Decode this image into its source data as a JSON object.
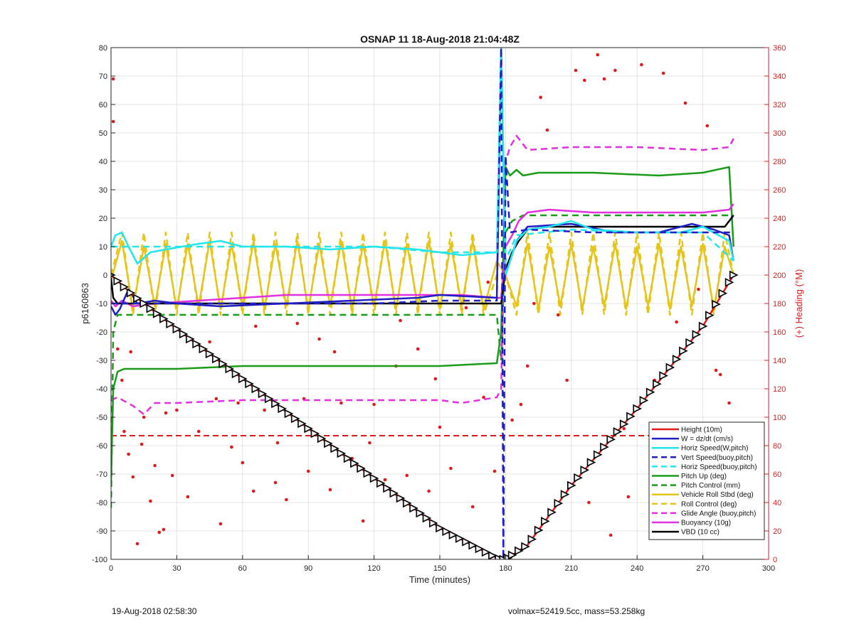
{
  "chart_data": {
    "type": "line",
    "title": "OSNAP 11 18-Aug-2018 21:04:48Z",
    "xlabel": "Time (minutes)",
    "ylabel": "p6160863",
    "y2label": "(+) Heading (°M)",
    "xlim": [
      0,
      300
    ],
    "ylim": [
      -100,
      80
    ],
    "y2lim": [
      0,
      360
    ],
    "x_ticks": [
      0,
      30,
      60,
      90,
      120,
      150,
      180,
      210,
      240,
      270,
      300
    ],
    "y_ticks": [
      -100,
      -90,
      -80,
      -70,
      -60,
      -50,
      -40,
      -30,
      -20,
      -10,
      0,
      10,
      20,
      30,
      40,
      50,
      60,
      70,
      80
    ],
    "y2_ticks": [
      0,
      20,
      40,
      60,
      80,
      100,
      120,
      140,
      160,
      180,
      200,
      220,
      240,
      260,
      280,
      300,
      320,
      340,
      360
    ],
    "grid": true,
    "legend_position": "bottom-right",
    "series": [
      {
        "name": "Height (10m)",
        "color": "#e0191c",
        "style": "solid",
        "x": [
          0,
          10,
          30,
          60,
          90,
          120,
          150,
          176,
          178,
          180,
          190,
          210,
          240,
          270,
          284
        ],
        "y": [
          0,
          -7,
          -19,
          -36.5,
          -54,
          -71.5,
          -89,
          -99.5,
          -100,
          -100,
          -95,
          -74,
          -47,
          -18,
          0
        ]
      },
      {
        "name": "W = dz/dt (cm/s)",
        "color": "#1f1fc4",
        "style": "solid",
        "x": [
          0,
          2,
          4,
          8,
          12,
          20,
          30,
          50,
          80,
          110,
          140,
          150,
          176,
          178,
          180,
          185,
          190,
          210,
          230,
          250,
          265,
          275,
          282,
          284
        ],
        "y": [
          -11,
          -14,
          -12,
          -5,
          -10,
          -9,
          -10,
          -11,
          -10,
          -9,
          -8,
          -7,
          -8,
          80,
          0,
          12,
          17,
          18,
          15,
          15,
          18,
          16,
          14,
          5
        ]
      },
      {
        "name": "Horiz Speed(W,pitch)",
        "color": "#22e6ec",
        "style": "solid",
        "x": [
          0,
          2,
          5,
          8,
          12,
          18,
          25,
          40,
          50,
          60,
          80,
          100,
          120,
          140,
          160,
          176,
          178,
          180,
          185,
          190,
          200,
          210,
          220,
          240,
          260,
          270,
          282,
          284
        ],
        "y": [
          10,
          14,
          15,
          10,
          4,
          8,
          9,
          11,
          12,
          10,
          10,
          9,
          10,
          9,
          7,
          8,
          80,
          0,
          12,
          16,
          17,
          19,
          16,
          15,
          15,
          17,
          12,
          5
        ]
      },
      {
        "name": "Vert Speed(buoy,pitch)",
        "color": "#1f1fc4",
        "style": "dashed",
        "x": [
          0,
          10,
          30,
          60,
          90,
          120,
          150,
          176,
          178,
          179,
          180,
          182,
          190,
          220,
          250,
          280,
          284
        ],
        "y": [
          -10,
          -10,
          -10,
          -10,
          -10,
          -10,
          -9,
          -9,
          80,
          -100,
          42,
          15,
          16,
          15,
          15,
          15,
          15
        ]
      },
      {
        "name": "Horiz Speed(buoy,pitch)",
        "color": "#22e6ec",
        "style": "dashed",
        "x": [
          0,
          30,
          60,
          90,
          120,
          150,
          176,
          178,
          180,
          185,
          210,
          240,
          270,
          284
        ],
        "y": [
          10,
          10,
          10,
          10,
          10,
          8,
          8,
          80,
          5,
          14,
          16,
          15,
          15,
          5
        ]
      },
      {
        "name": "Pitch Up (deg)",
        "color": "#1a9c1a",
        "style": "solid",
        "x": [
          0,
          1,
          3,
          6,
          15,
          30,
          60,
          90,
          120,
          150,
          176,
          178,
          180,
          182,
          185,
          188,
          195,
          220,
          250,
          270,
          282,
          284
        ],
        "y": [
          -73,
          -40,
          -34,
          -33,
          -33,
          -33,
          -32,
          -32,
          -32,
          -32,
          -31,
          -20,
          38,
          35,
          37,
          35,
          36,
          36,
          35,
          36,
          38,
          10
        ]
      },
      {
        "name": "Pitch Control (mm)",
        "color": "#1a9c1a",
        "style": "dashed",
        "x": [
          0,
          1,
          3,
          30,
          60,
          90,
          120,
          150,
          176,
          178,
          180,
          183,
          188,
          210,
          240,
          270,
          284
        ],
        "y": [
          -82,
          -20,
          -14,
          -14,
          -14,
          -14,
          -14,
          -14,
          -14,
          -30,
          15,
          19,
          21,
          21,
          21,
          21,
          21
        ]
      },
      {
        "name": "Vehicle Roll Stbd (deg)",
        "color": "#e6c51a",
        "style": "solid",
        "x": [
          0,
          5,
          10,
          15,
          20,
          25,
          30,
          35,
          40,
          45,
          50,
          55,
          60,
          65,
          70,
          75,
          80,
          85,
          90,
          95,
          100,
          105,
          110,
          115,
          120,
          125,
          130,
          135,
          140,
          145,
          150,
          155,
          160,
          165,
          170,
          176,
          180,
          185,
          190,
          195,
          200,
          205,
          210,
          215,
          220,
          225,
          230,
          235,
          240,
          245,
          250,
          255,
          260,
          265,
          270,
          275,
          280,
          284
        ],
        "y": [
          -2,
          12,
          -12,
          10,
          -11,
          11,
          -12,
          11,
          -11,
          12,
          -12,
          11,
          -11,
          12,
          -12,
          11,
          -11,
          12,
          -12,
          11,
          -11,
          12,
          -12,
          11,
          -11,
          12,
          -12,
          11,
          -11,
          12,
          -12,
          11,
          -11,
          12,
          -12,
          5,
          0,
          -11,
          11,
          -12,
          10,
          -11,
          11,
          -12,
          10,
          -11,
          11,
          -12,
          10,
          -11,
          11,
          -12,
          10,
          -11,
          11,
          -12,
          10,
          0
        ]
      },
      {
        "name": "Roll Control (deg)",
        "color": "#e6c51a",
        "style": "dashed",
        "x": [
          0,
          5,
          10,
          15,
          20,
          25,
          30,
          35,
          40,
          45,
          50,
          55,
          60,
          65,
          70,
          75,
          80,
          85,
          90,
          95,
          100,
          105,
          110,
          115,
          120,
          125,
          130,
          135,
          140,
          145,
          150,
          155,
          160,
          165,
          170,
          176,
          180,
          185,
          190,
          195,
          200,
          205,
          210,
          215,
          220,
          225,
          230,
          235,
          240,
          245,
          250,
          255,
          260,
          265,
          270,
          275,
          280,
          284
        ],
        "y": [
          0,
          15,
          -14,
          15,
          -14,
          15,
          -14,
          15,
          -14,
          15,
          -14,
          15,
          -14,
          15,
          -14,
          15,
          -14,
          15,
          -14,
          15,
          -14,
          15,
          -14,
          15,
          -14,
          15,
          -14,
          15,
          -14,
          15,
          -14,
          15,
          -14,
          15,
          -14,
          0,
          0,
          -14,
          15,
          -14,
          15,
          -14,
          15,
          -14,
          15,
          -14,
          15,
          -14,
          15,
          -14,
          15,
          -14,
          15,
          -14,
          15,
          -14,
          15,
          0
        ]
      },
      {
        "name": "Glide Angle (buoy,pitch)",
        "color": "#e12fe1",
        "style": "dashed",
        "x": [
          0,
          3,
          10,
          15,
          20,
          30,
          60,
          90,
          120,
          150,
          160,
          176,
          178,
          180,
          182,
          185,
          190,
          210,
          240,
          270,
          282,
          284
        ],
        "y": [
          -44,
          -43,
          -46,
          -49,
          -45,
          -45,
          -44,
          -44,
          -44,
          -44,
          -45,
          -43,
          -40,
          40,
          45,
          49,
          44,
          45,
          45,
          44,
          45,
          48
        ]
      },
      {
        "name": "Buoyancy (10g)",
        "color": "#e12fe1",
        "style": "solid",
        "x": [
          0,
          2,
          5,
          10,
          20,
          40,
          60,
          80,
          100,
          120,
          140,
          160,
          176,
          178,
          180,
          183,
          186,
          190,
          200,
          220,
          240,
          260,
          270,
          282,
          284
        ],
        "y": [
          -9,
          -11,
          -9,
          -11,
          -10,
          -9,
          -8,
          -7,
          -7,
          -7,
          -7,
          -7,
          -8,
          -8,
          10,
          14,
          19,
          22,
          23,
          22,
          22,
          22,
          22,
          23,
          25
        ]
      },
      {
        "name": "VBD (10 cc)",
        "color": "#000000",
        "style": "solid",
        "x": [
          0,
          1,
          3,
          30,
          60,
          90,
          120,
          150,
          176,
          178,
          180,
          183,
          186,
          190,
          200,
          230,
          260,
          280,
          282,
          284
        ],
        "y": [
          -1,
          -8,
          -10,
          -10,
          -10,
          -10,
          -10,
          -10,
          -10,
          -10,
          2,
          8,
          12,
          16,
          17,
          17,
          17,
          17,
          19,
          21
        ]
      }
    ],
    "reference_lines": [
      {
        "axis": "y2",
        "value": 87,
        "color": "#e0191c",
        "style": "dashed",
        "x_from": 0,
        "x_to": 284
      }
    ],
    "heading_points": {
      "axis": "y2",
      "color": "#e0191c",
      "x": [
        1,
        1,
        3,
        6,
        8,
        10,
        12,
        15,
        18,
        20,
        22,
        25,
        28,
        30,
        35,
        40,
        45,
        50,
        55,
        58,
        60,
        65,
        70,
        75,
        80,
        85,
        90,
        95,
        100,
        105,
        110,
        115,
        120,
        125,
        130,
        135,
        140,
        145,
        150,
        155,
        160,
        165,
        170,
        175,
        183,
        187,
        190,
        196,
        199,
        208,
        212,
        216,
        222,
        225,
        230,
        236,
        242,
        246,
        252,
        256,
        262,
        268,
        272,
        276,
        280,
        5,
        9,
        14,
        24,
        38,
        48,
        66,
        76,
        88,
        102,
        118,
        132,
        148,
        162,
        172,
        193,
        204,
        218,
        228,
        234,
        248,
        258,
        266,
        274,
        278,
        282
      ],
      "y": [
        338,
        308,
        148,
        90,
        74,
        58,
        11,
        100,
        41,
        66,
        19,
        103,
        59,
        105,
        44,
        90,
        153,
        25,
        79,
        110,
        68,
        48,
        105,
        54,
        42,
        166,
        62,
        155,
        49,
        110,
        71,
        27,
        109,
        56,
        136,
        59,
        148,
        48,
        93,
        64,
        176,
        37,
        114,
        62,
        98,
        109,
        136,
        325,
        302,
        126,
        344,
        337,
        355,
        338,
        344,
        44,
        348,
        22,
        342,
        364,
        321,
        190,
        305,
        133,
        58,
        126,
        146,
        81,
        21,
        152,
        113,
        164,
        82,
        113,
        146,
        82,
        168,
        127,
        177,
        195,
        180,
        172,
        40,
        17,
        92,
        126,
        167,
        53,
        52,
        130,
        110
      ]
    },
    "marker_series": {
      "color": "#000000",
      "x": [
        0,
        3,
        6,
        9,
        12,
        15,
        18,
        21,
        24,
        27,
        30,
        33,
        36,
        39,
        42,
        45,
        48,
        51,
        54,
        57,
        60,
        63,
        66,
        69,
        72,
        75,
        78,
        81,
        84,
        87,
        90,
        93,
        96,
        99,
        102,
        105,
        108,
        111,
        114,
        117,
        120,
        123,
        126,
        129,
        132,
        135,
        138,
        141,
        144,
        147,
        150,
        153,
        156,
        159,
        162,
        165,
        168,
        171,
        174,
        177,
        179,
        181,
        183,
        186,
        189,
        192,
        195,
        198,
        201,
        204,
        207,
        210,
        213,
        216,
        219,
        222,
        225,
        228,
        231,
        234,
        237,
        240,
        243,
        246,
        249,
        252,
        255,
        258,
        261,
        264,
        267,
        270,
        273,
        276,
        279,
        282,
        284
      ]
    }
  },
  "footer": {
    "left": "19-Aug-2018 02:58:30",
    "right": "volmax=52419.5cc, mass=53.258kg"
  }
}
